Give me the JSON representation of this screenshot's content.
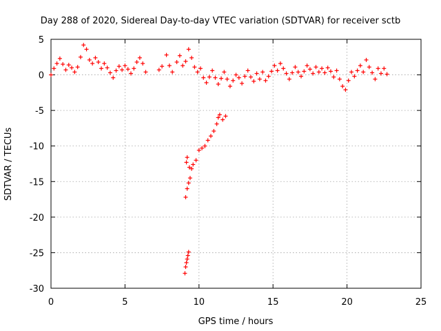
{
  "chart_data": {
    "type": "scatter",
    "title": "Day 288 of 2020, Sidereal Day-to-day VTEC variation (SDTVAR) for receiver sctb",
    "xlabel": "GPS time / hours",
    "ylabel": "SDTVAR / TECUs",
    "xlim": [
      0,
      25
    ],
    "ylim": [
      -30,
      5
    ],
    "xticks": [
      0,
      5,
      10,
      15,
      20,
      25
    ],
    "yticks": [
      5,
      0,
      -5,
      -10,
      -15,
      -20,
      -25,
      -30
    ],
    "grid": true,
    "marker": "+",
    "color": "#ff0000",
    "series": [
      {
        "name": "main-band",
        "points": [
          [
            0.0,
            0.0
          ],
          [
            0.2,
            0.9
          ],
          [
            0.4,
            1.6
          ],
          [
            0.6,
            2.3
          ],
          [
            0.8,
            1.5
          ],
          [
            1.0,
            0.7
          ],
          [
            1.2,
            1.4
          ],
          [
            1.4,
            1.0
          ],
          [
            1.6,
            0.4
          ],
          [
            1.8,
            1.1
          ],
          [
            2.0,
            2.5
          ],
          [
            2.2,
            4.2
          ],
          [
            2.4,
            3.6
          ],
          [
            2.6,
            2.1
          ],
          [
            2.8,
            1.6
          ],
          [
            3.0,
            2.4
          ],
          [
            3.2,
            1.8
          ],
          [
            3.4,
            0.9
          ],
          [
            3.6,
            1.6
          ],
          [
            3.8,
            1.0
          ],
          [
            4.0,
            0.3
          ],
          [
            4.2,
            -0.4
          ],
          [
            4.4,
            0.6
          ],
          [
            4.6,
            1.2
          ],
          [
            4.8,
            0.7
          ],
          [
            5.0,
            1.3
          ],
          [
            5.2,
            0.8
          ],
          [
            5.4,
            0.2
          ],
          [
            5.6,
            0.9
          ],
          [
            5.8,
            1.8
          ],
          [
            6.0,
            2.4
          ],
          [
            6.2,
            1.6
          ],
          [
            6.4,
            0.4
          ],
          [
            7.3,
            0.7
          ],
          [
            7.5,
            1.2
          ],
          [
            7.8,
            2.8
          ],
          [
            8.0,
            1.3
          ],
          [
            8.2,
            0.4
          ],
          [
            8.5,
            1.8
          ],
          [
            8.7,
            2.7
          ],
          [
            8.9,
            1.3
          ],
          [
            9.1,
            1.9
          ],
          [
            9.3,
            3.6
          ],
          [
            9.5,
            2.4
          ],
          [
            9.7,
            1.1
          ],
          [
            9.9,
            0.4
          ],
          [
            10.1,
            0.9
          ],
          [
            10.3,
            -0.4
          ],
          [
            10.5,
            -1.1
          ],
          [
            10.7,
            -0.3
          ],
          [
            10.9,
            0.6
          ],
          [
            11.1,
            -0.4
          ],
          [
            11.3,
            -1.3
          ],
          [
            11.5,
            -0.5
          ],
          [
            11.7,
            0.4
          ],
          [
            11.9,
            -0.6
          ],
          [
            12.1,
            -1.6
          ],
          [
            12.3,
            -0.8
          ],
          [
            12.5,
            0.0
          ],
          [
            12.7,
            -0.4
          ],
          [
            12.9,
            -1.2
          ],
          [
            13.1,
            -0.2
          ],
          [
            13.3,
            0.6
          ],
          [
            13.5,
            -0.3
          ],
          [
            13.7,
            -0.9
          ],
          [
            13.9,
            0.2
          ],
          [
            14.1,
            -0.6
          ],
          [
            14.3,
            0.4
          ],
          [
            14.5,
            -0.8
          ],
          [
            14.7,
            -0.2
          ],
          [
            14.9,
            0.5
          ],
          [
            15.1,
            1.3
          ],
          [
            15.3,
            0.6
          ],
          [
            15.5,
            1.6
          ],
          [
            15.7,
            0.9
          ],
          [
            15.9,
            0.2
          ],
          [
            16.1,
            -0.6
          ],
          [
            16.3,
            0.3
          ],
          [
            16.5,
            1.1
          ],
          [
            16.7,
            0.4
          ],
          [
            16.9,
            -0.2
          ],
          [
            17.1,
            0.5
          ],
          [
            17.3,
            1.3
          ],
          [
            17.5,
            0.8
          ],
          [
            17.7,
            0.2
          ],
          [
            17.9,
            1.1
          ],
          [
            18.1,
            0.4
          ],
          [
            18.3,
            0.9
          ],
          [
            18.5,
            0.3
          ],
          [
            18.7,
            1.0
          ],
          [
            18.9,
            0.5
          ],
          [
            19.1,
            -0.3
          ],
          [
            19.3,
            0.6
          ],
          [
            19.5,
            -0.6
          ],
          [
            19.7,
            -1.6
          ],
          [
            19.9,
            -2.1
          ],
          [
            20.1,
            -0.8
          ],
          [
            20.3,
            0.4
          ],
          [
            20.5,
            -0.2
          ],
          [
            20.7,
            0.6
          ],
          [
            20.9,
            1.3
          ],
          [
            21.1,
            0.4
          ],
          [
            21.3,
            2.1
          ],
          [
            21.5,
            1.1
          ],
          [
            21.7,
            0.3
          ],
          [
            21.9,
            -0.6
          ],
          [
            22.1,
            0.9
          ],
          [
            22.3,
            0.2
          ],
          [
            22.5,
            0.9
          ],
          [
            22.7,
            0.1
          ]
        ]
      },
      {
        "name": "dropout-segment",
        "points": [
          [
            9.1,
            -17.2
          ],
          [
            9.2,
            -16.0
          ],
          [
            9.3,
            -15.2
          ],
          [
            9.4,
            -14.5
          ],
          [
            9.35,
            -13.0
          ],
          [
            9.15,
            -12.3
          ],
          [
            9.2,
            -11.6
          ],
          [
            9.5,
            -13.2
          ],
          [
            9.6,
            -12.6
          ],
          [
            9.8,
            -12.0
          ],
          [
            10.0,
            -10.6
          ],
          [
            10.2,
            -10.3
          ],
          [
            10.4,
            -10.0
          ],
          [
            10.6,
            -9.2
          ],
          [
            10.8,
            -8.6
          ],
          [
            11.0,
            -7.9
          ],
          [
            11.2,
            -6.9
          ],
          [
            11.3,
            -6.0
          ],
          [
            11.4,
            -5.6
          ],
          [
            11.6,
            -6.3
          ],
          [
            11.8,
            -5.8
          ]
        ]
      },
      {
        "name": "low-cluster",
        "points": [
          [
            9.05,
            -27.9
          ],
          [
            9.1,
            -27.0
          ],
          [
            9.15,
            -26.4
          ],
          [
            9.2,
            -25.9
          ],
          [
            9.25,
            -25.4
          ],
          [
            9.3,
            -24.9
          ]
        ]
      }
    ]
  }
}
